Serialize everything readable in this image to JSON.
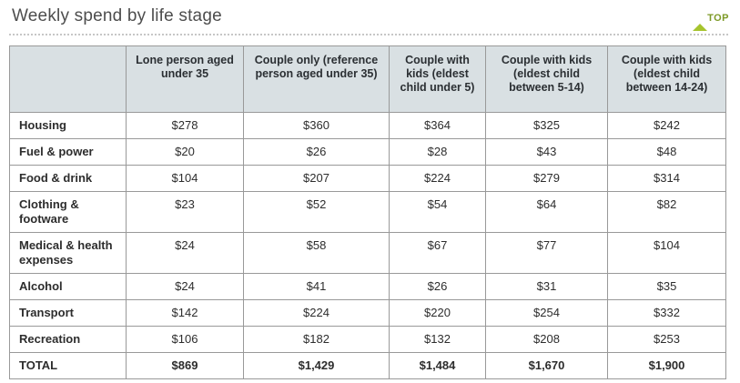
{
  "page": {
    "title": "Weekly spend by life stage",
    "top_link_label": "TOP"
  },
  "table": {
    "columns": [
      "",
      "Lone person aged under 35",
      "Couple only (reference person aged under 35)",
      "Couple with kids (eldest child under 5)",
      "Couple with kids (eldest child between 5-14)",
      "Couple with kids (eldest child between 14-24)"
    ],
    "rows": [
      {
        "label": "Housing",
        "values": [
          "$278",
          "$360",
          "$364",
          "$325",
          "$242"
        ],
        "is_total": false
      },
      {
        "label": "Fuel & power",
        "values": [
          "$20",
          "$26",
          "$28",
          "$43",
          "$48"
        ],
        "is_total": false
      },
      {
        "label": "Food & drink",
        "values": [
          "$104",
          "$207",
          "$224",
          "$279",
          "$314"
        ],
        "is_total": false
      },
      {
        "label": "Clothing & footware",
        "values": [
          "$23",
          "$52",
          "$54",
          "$64",
          "$82"
        ],
        "is_total": false
      },
      {
        "label": "Medical & health expenses",
        "values": [
          "$24",
          "$58",
          "$67",
          "$77",
          "$104"
        ],
        "is_total": false
      },
      {
        "label": "Alcohol",
        "values": [
          "$24",
          "$41",
          "$26",
          "$31",
          "$35"
        ],
        "is_total": false
      },
      {
        "label": "Transport",
        "values": [
          "$142",
          "$224",
          "$220",
          "$254",
          "$332"
        ],
        "is_total": false
      },
      {
        "label": "Recreation",
        "values": [
          "$106",
          "$182",
          "$132",
          "$208",
          "$253"
        ],
        "is_total": false
      },
      {
        "label": "TOTAL",
        "values": [
          "$869",
          "$1,429",
          "$1,484",
          "$1,670",
          "$1,900"
        ],
        "is_total": true
      }
    ]
  },
  "icons": {
    "top_arrow": "up-triangle-icon"
  },
  "colors": {
    "header_bg": "#d9e0e3",
    "table_border": "#999999",
    "title_text": "#4d4d4d",
    "body_text": "#2d2d2d",
    "top_link_text": "#7d9a27",
    "top_link_triangle": "#a6c42e",
    "divider_dots": "#c6c6c6",
    "background": "#ffffff"
  }
}
